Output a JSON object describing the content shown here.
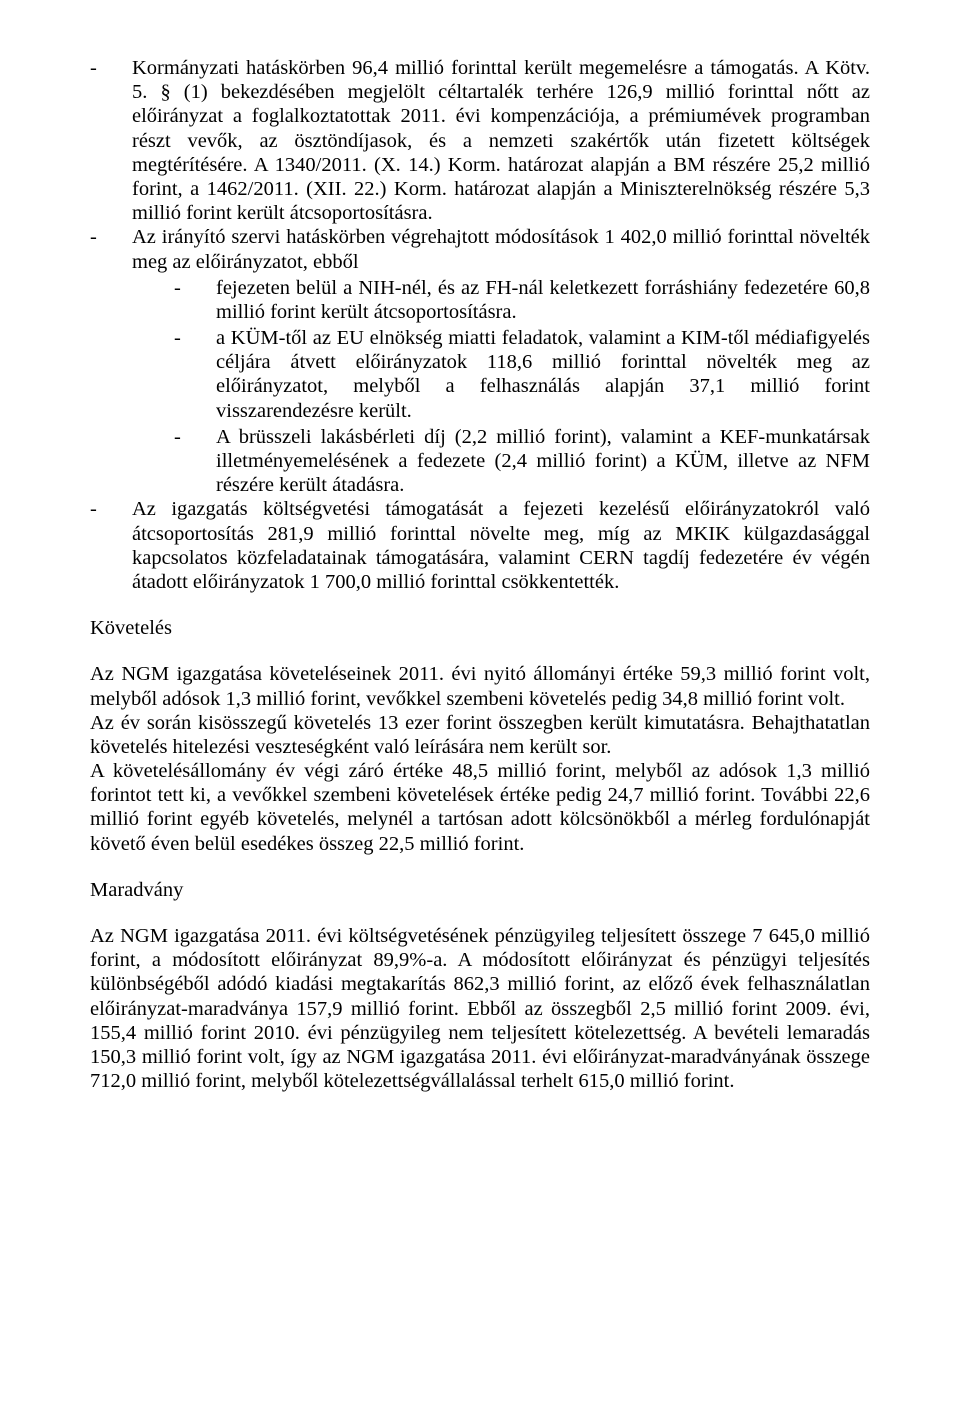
{
  "bullets": {
    "b1": "Kormányzati hatáskörben 96,4 millió forinttal került megemelésre a támogatás. A Kötv. 5. § (1) bekezdésében megjelölt céltartalék terhére 126,9 millió forinttal nőtt az előirányzat a foglalkoztatottak 2011. évi kompenzációja, a prémiumévek programban részt vevők, az ösztöndíjasok, és a nemzeti szakértők után fizetett költségek megtérítésére. A 1340/2011. (X. 14.) Korm. határozat alapján a BM részére 25,2 millió forint, a 1462/2011. (XII. 22.) Korm. határozat alapján a Miniszterelnökség részére 5,3 millió forint került átcsoportosításra.",
    "b2_intro": "Az irányító szervi hatáskörben végrehajtott módosítások 1 402,0 millió forinttal növelték meg az előirányzatot, ebből",
    "b2_sub1": "fejezeten belül a NIH-nél, és az FH-nál keletkezett forráshiány fedezetére 60,8 millió forint került átcsoportosításra.",
    "b2_sub2": "a KÜM-től az EU elnökség miatti feladatok, valamint a KIM-től médiafigyelés céljára átvett előirányzatok 118,6 millió forinttal növelték meg az előirányzatot, melyből a felhasználás alapján 37,1 millió forint visszarendezésre került.",
    "b2_sub3": "A brüsszeli lakásbérleti díj (2,2 millió forint), valamint a KEF-munkatársak illetményemelésének a fedezete (2,4 millió forint) a KÜM, illetve az NFM részére került átadásra.",
    "b3": "Az igazgatás költségvetési támogatását a fejezeti kezelésű előirányzatokról való átcsoportosítás 281,9 millió forinttal növelte meg, míg az MKIK külgazdasággal kapcsolatos közfeladatainak támogatására, valamint CERN tagdíj fedezetére év végén átadott előirányzatok 1 700,0 millió forinttal csökkentették."
  },
  "kov_heading": "Követelés",
  "kov_p1": "Az NGM igazgatása követeléseinek 2011. évi nyitó állományi értéke 59,3 millió forint volt, melyből adósok 1,3 millió forint, vevőkkel szembeni követelés pedig 34,8 millió forint volt.",
  "kov_p2": "Az év során kisösszegű követelés 13 ezer forint összegben került kimutatásra. Behajthatatlan követelés hitelezési veszteségként való leírására nem került sor.",
  "kov_p3": "A követelésállomány év végi záró értéke 48,5 millió forint, melyből az adósok 1,3 millió forintot tett ki, a vevőkkel szembeni követelések értéke pedig 24,7 millió forint. További 22,6 millió forint egyéb követelés, melynél a tartósan adott kölcsönökből a mérleg fordulónapját követő éven belül esedékes összeg 22,5 millió forint.",
  "mar_heading": "Maradvány",
  "mar_p1": "Az NGM igazgatása 2011. évi költségvetésének pénzügyileg teljesített összege 7 645,0 millió forint, a módosított előirányzat 89,9%-a. A módosított előirányzat és pénzügyi teljesítés különbségéből adódó kiadási megtakarítás 862,3 millió forint, az előző évek felhasználatlan előirányzat-maradványa 157,9 millió forint. Ebből az összegből 2,5 millió forint 2009. évi, 155,4 millió forint 2010. évi pénzügyileg nem teljesített kötelezettség. A bevételi lemaradás 150,3 millió forint volt, így az NGM igazgatása 2011. évi előirányzat-maradványának összege 712,0 millió forint, melyből kötelezettségvállalással terhelt 615,0 millió forint."
}
